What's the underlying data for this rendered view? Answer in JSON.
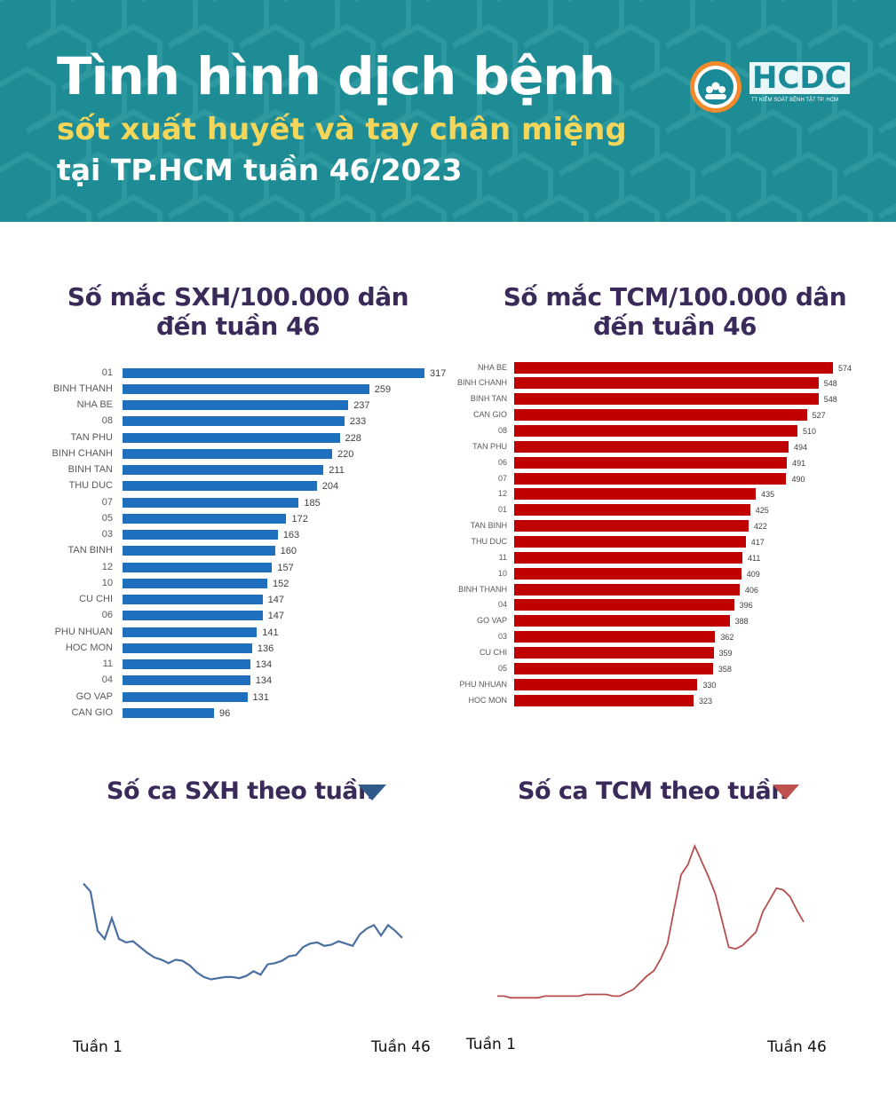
{
  "header": {
    "title": "Tình hình dịch bệnh",
    "subtitle": "sốt xuất huyết và tay chân miệng",
    "subtitle2": "tại TP.HCM tuần 46/2023",
    "logo_text": "HCDC",
    "logo_sub": "TT KIỂM SOÁT BỆNH TẬT TP. HCM",
    "bg_color": "#1e8c94",
    "accent_color": "#f3d65a"
  },
  "chart_data": [
    {
      "type": "bar",
      "orientation": "horizontal",
      "title_line1": "Số mắc SXH/100.000 dân",
      "title_line2": "đến tuần 46",
      "color": "#1f6fbf",
      "categories": [
        "01",
        "BINH THANH",
        "NHA BE",
        "08",
        "TAN PHU",
        "BINH CHANH",
        "BINH TAN",
        "THU DUC",
        "07",
        "05",
        "03",
        "TAN BINH",
        "12",
        "10",
        "CU CHI",
        "06",
        "PHU NHUAN",
        "HOC MON",
        "11",
        "04",
        "GO VAP",
        "CAN GIO"
      ],
      "values": [
        317,
        259,
        237,
        233,
        228,
        220,
        211,
        204,
        185,
        172,
        163,
        160,
        157,
        152,
        147,
        147,
        141,
        136,
        134,
        134,
        131,
        96
      ]
    },
    {
      "type": "bar",
      "orientation": "horizontal",
      "title_line1": "Số mắc TCM/100.000 dân",
      "title_line2": "đến tuần 46",
      "color": "#c00000",
      "categories": [
        "NHA BE",
        "BINH CHANH",
        "BINH TAN",
        "CAN GIO",
        "08",
        "TAN PHU",
        "06",
        "07",
        "12",
        "01",
        "TAN BINH",
        "THU DUC",
        "11",
        "10",
        "BINH THANH",
        "04",
        "GO VAP",
        "03",
        "CU CHI",
        "05",
        "PHU NHUAN",
        "HOC MON"
      ],
      "values": [
        574,
        548,
        548,
        527,
        510,
        494,
        491,
        490,
        435,
        425,
        422,
        417,
        411,
        409,
        406,
        396,
        388,
        362,
        359,
        358,
        330,
        323
      ]
    },
    {
      "type": "line",
      "title": "Số ca SXH theo tuần",
      "trend": "down",
      "trend_color": "#2e5b8a",
      "color": "#4a6fa0",
      "x_start_label": "Tuần 1",
      "x_end_label": "Tuần 46",
      "y_axis": "none",
      "values": [
        88,
        81,
        47,
        40,
        58,
        40,
        37,
        38,
        33,
        28,
        24,
        22,
        19,
        22,
        21,
        17,
        11,
        7,
        5,
        6,
        7,
        7,
        6,
        8,
        12,
        9,
        18,
        19,
        21,
        25,
        26,
        33,
        36,
        37,
        34,
        35,
        38,
        36,
        34,
        44,
        49,
        52,
        43,
        52,
        47,
        41
      ]
    },
    {
      "type": "line",
      "title": "Số ca TCM theo tuần",
      "trend": "down",
      "trend_color": "#c0504d",
      "color": "#b5504e",
      "x_start_label": "Tuần 1",
      "x_end_label": "Tuần 46",
      "y_axis": "none",
      "values": [
        4,
        4,
        3,
        3,
        3,
        3,
        3,
        4,
        4,
        4,
        4,
        4,
        4,
        5,
        5,
        5,
        5,
        4,
        4,
        6,
        8,
        12,
        16,
        19,
        26,
        35,
        56,
        76,
        82,
        93,
        84,
        75,
        65,
        49,
        33,
        32,
        34,
        38,
        42,
        54,
        61,
        68,
        67,
        63,
        55,
        48
      ]
    }
  ]
}
